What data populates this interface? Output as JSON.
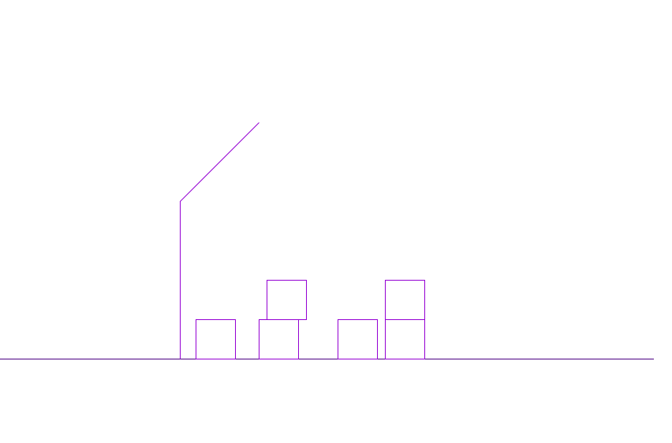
{
  "scene": {
    "stroke_color": "#9400d3",
    "ground_color": "#4b0082",
    "boxes": [
      {
        "id": "box-1",
        "column": 1,
        "stack_level": 1
      },
      {
        "id": "box-2",
        "column": 2,
        "stack_level": 1
      },
      {
        "id": "box-3",
        "column": 2,
        "stack_level": 2
      },
      {
        "id": "box-4",
        "column": 3,
        "stack_level": 1
      },
      {
        "id": "box-5",
        "column": 4,
        "stack_level": 1
      },
      {
        "id": "box-6",
        "column": 4,
        "stack_level": 2
      }
    ]
  }
}
